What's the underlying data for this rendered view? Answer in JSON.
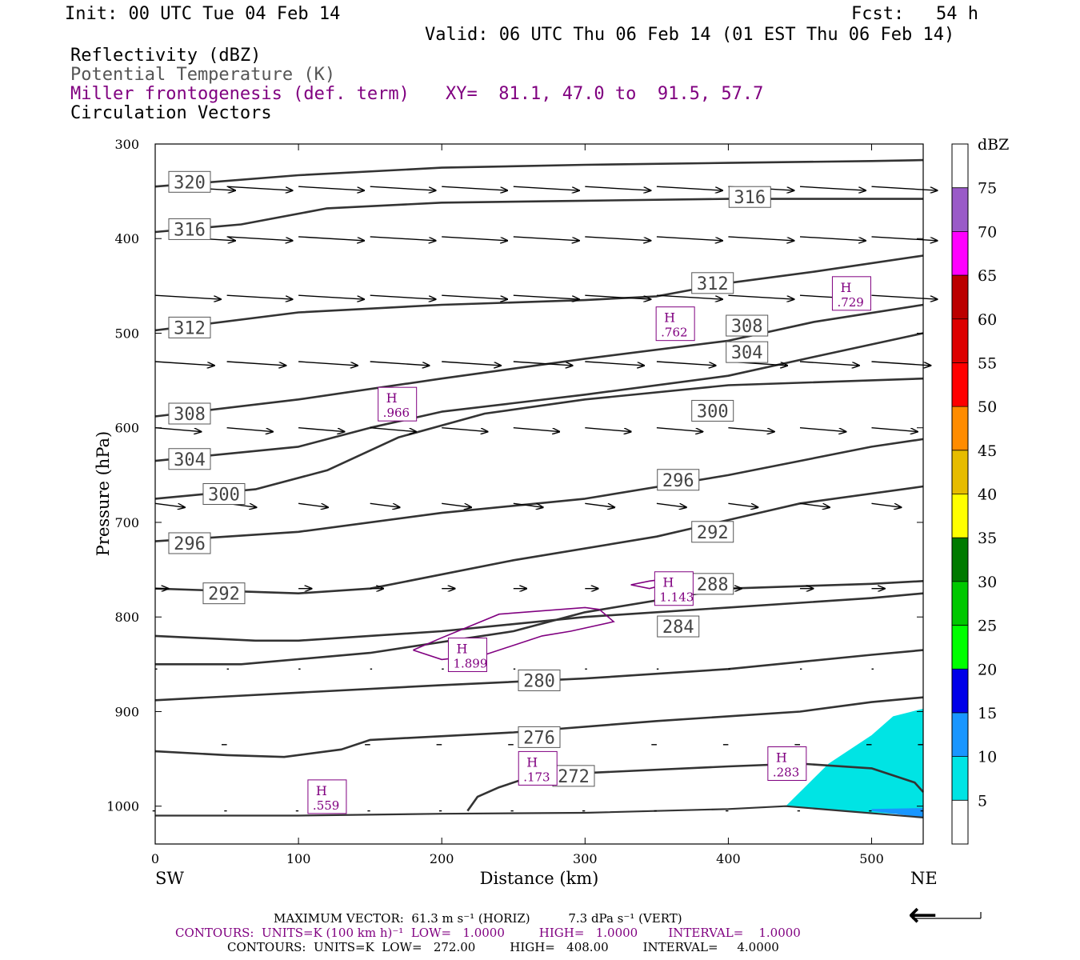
{
  "header": {
    "init": "Init: 00 UTC Tue 04 Feb 14",
    "fcst": "Fcst:   54 h",
    "valid": "Valid: 06 UTC Thu 06 Feb 14 (01 EST Thu 06 Feb 14)",
    "fields": [
      {
        "text": "Reflectivity (dBZ)",
        "color": "#000000"
      },
      {
        "text": "Potential Temperature (K)",
        "color": "#555555"
      },
      {
        "text": "Miller frontogenesis (def. term)",
        "color": "#800080"
      },
      {
        "text": "Circulation Vectors",
        "color": "#000000"
      }
    ],
    "xy": "XY=  81.1, 47.0 to  91.5, 57.7"
  },
  "footer": {
    "line1": "MAXIMUM VECTOR:  61.3 m s⁻¹ (HORIZ)          7.3 dPa s⁻¹ (VERT)",
    "line2": "CONTOURS:  UNITS=K (100 km h)⁻¹  LOW=   1.0000         HIGH=   1.0000        INTERVAL=    1.0000",
    "line3": "CONTOURS:  UNITS=K  LOW=   272.00         HIGH=   408.00         INTERVAL=     4.0000"
  },
  "chart_data": {
    "type": "cross-section",
    "xlabel": "Distance (km)",
    "ylabel": "Pressure (hPa)",
    "xlim": [
      0,
      536
    ],
    "ylim": [
      1040,
      300
    ],
    "x_ticks": [
      0,
      100,
      200,
      300,
      400,
      500
    ],
    "y_ticks": [
      300,
      400,
      500,
      600,
      700,
      800,
      900,
      1000
    ],
    "x_end_labels": {
      "left": "SW",
      "right": "NE"
    },
    "theta_contours": [
      {
        "value": 320,
        "points": [
          [
            0,
            345
          ],
          [
            100,
            333
          ],
          [
            200,
            325
          ],
          [
            300,
            322
          ],
          [
            400,
            320
          ],
          [
            500,
            318
          ],
          [
            536,
            317
          ]
        ],
        "labels": [
          [
            24,
            340
          ]
        ]
      },
      {
        "value": 316,
        "points": [
          [
            0,
            393
          ],
          [
            60,
            385
          ],
          [
            120,
            368
          ],
          [
            200,
            362
          ],
          [
            300,
            360
          ],
          [
            400,
            358
          ],
          [
            536,
            358
          ]
        ],
        "labels": [
          [
            24,
            390
          ],
          [
            415,
            356
          ]
        ]
      },
      {
        "value": 312,
        "points": [
          [
            0,
            497
          ],
          [
            100,
            478
          ],
          [
            200,
            470
          ],
          [
            300,
            465
          ],
          [
            350,
            461
          ],
          [
            400,
            447
          ],
          [
            460,
            435
          ],
          [
            536,
            418
          ]
        ],
        "labels": [
          [
            24,
            494
          ],
          [
            389,
            447
          ]
        ]
      },
      {
        "value": 308,
        "points": [
          [
            0,
            588
          ],
          [
            100,
            570
          ],
          [
            200,
            548
          ],
          [
            300,
            527
          ],
          [
            400,
            508
          ],
          [
            460,
            488
          ],
          [
            536,
            470
          ]
        ],
        "labels": [
          [
            24,
            585
          ],
          [
            413,
            492
          ]
        ]
      },
      {
        "value": 304,
        "points": [
          [
            0,
            635
          ],
          [
            100,
            620
          ],
          [
            150,
            600
          ],
          [
            200,
            583
          ],
          [
            300,
            565
          ],
          [
            400,
            545
          ],
          [
            460,
            525
          ],
          [
            536,
            500
          ]
        ],
        "labels": [
          [
            24,
            633
          ],
          [
            413,
            520
          ]
        ]
      },
      {
        "value": 300,
        "points": [
          [
            0,
            675
          ],
          [
            70,
            665
          ],
          [
            120,
            645
          ],
          [
            170,
            610
          ],
          [
            230,
            585
          ],
          [
            300,
            570
          ],
          [
            400,
            555
          ],
          [
            536,
            548
          ]
        ],
        "labels": [
          [
            48,
            670
          ],
          [
            389,
            582
          ]
        ]
      },
      {
        "value": 296,
        "points": [
          [
            0,
            720
          ],
          [
            100,
            710
          ],
          [
            200,
            690
          ],
          [
            300,
            675
          ],
          [
            400,
            650
          ],
          [
            500,
            620
          ],
          [
            536,
            612
          ]
        ],
        "labels": [
          [
            24,
            722
          ],
          [
            365,
            655
          ]
        ]
      },
      {
        "value": 292,
        "points": [
          [
            0,
            770
          ],
          [
            60,
            773
          ],
          [
            100,
            775
          ],
          [
            150,
            770
          ],
          [
            250,
            740
          ],
          [
            350,
            715
          ],
          [
            450,
            680
          ],
          [
            536,
            662
          ]
        ],
        "labels": [
          [
            48,
            775
          ],
          [
            389,
            710
          ]
        ]
      },
      {
        "value": 288,
        "points": [
          [
            0,
            850
          ],
          [
            60,
            850
          ],
          [
            150,
            838
          ],
          [
            250,
            815
          ],
          [
            300,
            795
          ],
          [
            400,
            770
          ],
          [
            500,
            765
          ],
          [
            536,
            762
          ]
        ],
        "labels": [
          [
            389,
            765
          ]
        ]
      },
      {
        "value": 284,
        "points": [
          [
            0,
            820
          ],
          [
            70,
            825
          ],
          [
            100,
            825
          ],
          [
            200,
            815
          ],
          [
            300,
            800
          ],
          [
            400,
            790
          ],
          [
            500,
            780
          ],
          [
            536,
            775
          ]
        ],
        "labels": [
          [
            365,
            810
          ]
        ]
      },
      {
        "value": 280,
        "points": [
          [
            0,
            888
          ],
          [
            100,
            880
          ],
          [
            200,
            872
          ],
          [
            300,
            865
          ],
          [
            400,
            855
          ],
          [
            500,
            840
          ],
          [
            536,
            835
          ]
        ],
        "labels": [
          [
            268,
            867
          ]
        ]
      },
      {
        "value": 276,
        "points": [
          [
            0,
            942
          ],
          [
            50,
            946
          ],
          [
            90,
            948
          ],
          [
            130,
            940
          ],
          [
            150,
            930
          ],
          [
            250,
            922
          ],
          [
            350,
            910
          ],
          [
            450,
            900
          ],
          [
            500,
            890
          ],
          [
            536,
            885
          ]
        ],
        "labels": [
          [
            268,
            927
          ]
        ]
      },
      {
        "value": 272,
        "points": [
          [
            218,
            1005
          ],
          [
            225,
            990
          ],
          [
            240,
            980
          ],
          [
            260,
            970
          ],
          [
            300,
            965
          ],
          [
            400,
            958
          ],
          [
            450,
            955
          ],
          [
            500,
            960
          ],
          [
            530,
            975
          ],
          [
            536,
            985
          ]
        ],
        "labels": [
          [
            292,
            968
          ]
        ]
      }
    ],
    "lowest_contour": {
      "points": [
        [
          0,
          1010
        ],
        [
          100,
          1010
        ],
        [
          200,
          1008
        ],
        [
          300,
          1007
        ],
        [
          400,
          1003
        ],
        [
          440,
          1000
        ],
        [
          480,
          1005
        ],
        [
          536,
          1012
        ]
      ]
    },
    "frontogenesis_maxima": [
      {
        "label": "H",
        "value": ".966",
        "at": [
          169,
          575
        ]
      },
      {
        "label": "H",
        "value": ".762",
        "at": [
          363,
          490
        ]
      },
      {
        "label": "H",
        "value": ".729",
        "at": [
          486,
          458
        ]
      },
      {
        "label": "H",
        "value": "1.143",
        "at": [
          362,
          770
        ]
      },
      {
        "label": "H",
        "value": "1.899",
        "at": [
          218,
          840
        ]
      },
      {
        "label": "H",
        "value": ".173",
        "at": [
          267,
          960
        ]
      },
      {
        "label": "H",
        "value": ".283",
        "at": [
          441,
          955
        ]
      },
      {
        "label": "H",
        "value": ".559",
        "at": [
          120,
          990
        ]
      }
    ],
    "frontogenesis_contours": [
      {
        "points": [
          [
            180,
            835
          ],
          [
            200,
            822
          ],
          [
            240,
            797
          ],
          [
            300,
            790
          ],
          [
            310,
            792
          ],
          [
            320,
            805
          ],
          [
            290,
            815
          ],
          [
            270,
            820
          ],
          [
            230,
            840
          ],
          [
            200,
            845
          ],
          [
            180,
            835
          ]
        ]
      },
      {
        "points": [
          [
            332,
            766
          ],
          [
            345,
            762
          ],
          [
            355,
            760
          ],
          [
            360,
            764
          ],
          [
            345,
            770
          ],
          [
            332,
            766
          ]
        ]
      }
    ],
    "reflectivity_areas": [
      {
        "dbz": 5,
        "color": "#00e4e4",
        "points": [
          [
            440,
            1000
          ],
          [
            470,
            955
          ],
          [
            500,
            925
          ],
          [
            515,
            905
          ],
          [
            536,
            897
          ],
          [
            536,
            1010
          ],
          [
            480,
            1005
          ],
          [
            440,
            1000
          ]
        ]
      },
      {
        "dbz": 10,
        "color": "#1996ff",
        "points": [
          [
            500,
            1003
          ],
          [
            536,
            1002
          ],
          [
            536,
            1012
          ],
          [
            500,
            1005
          ]
        ]
      }
    ],
    "colorbar": {
      "unit": "dBZ",
      "levels": [
        5,
        10,
        15,
        20,
        25,
        30,
        35,
        40,
        45,
        50,
        55,
        60,
        65,
        70,
        75
      ],
      "colors": [
        "#ffffff",
        "#00e4e4",
        "#1996ff",
        "#0000e8",
        "#00ff00",
        "#00c800",
        "#007a00",
        "#ffff00",
        "#e6bc00",
        "#ff8c00",
        "#ff0000",
        "#dd0000",
        "#bb0000",
        "#ff00ff",
        "#9a5ac8",
        "#ffffff"
      ]
    },
    "vector_rows": [
      {
        "p": 345,
        "xs": [
          10,
          50,
          100,
          150,
          200,
          250,
          300,
          350,
          400,
          450,
          500
        ],
        "u": 1.0,
        "w": -0.02
      },
      {
        "p": 398,
        "xs": [
          10,
          50,
          100,
          150,
          200,
          250,
          300,
          350,
          400,
          450,
          500
        ],
        "u": 1.0,
        "w": -0.02
      },
      {
        "p": 460,
        "xs": [
          0,
          50,
          100,
          150,
          200,
          250,
          300,
          350,
          400,
          450,
          500
        ],
        "u": 1.0,
        "w": -0.02
      },
      {
        "p": 530,
        "xs": [
          0,
          50,
          100,
          150,
          200,
          250,
          300,
          350,
          400,
          450,
          500
        ],
        "u": 0.9,
        "w": -0.02
      },
      {
        "p": 600,
        "xs": [
          0,
          50,
          100,
          150,
          200,
          250,
          300,
          350,
          400,
          450,
          500
        ],
        "u": 0.7,
        "w": -0.02
      },
      {
        "p": 680,
        "xs": [
          0,
          50,
          100,
          150,
          200,
          250,
          300,
          350,
          400,
          450,
          500
        ],
        "u": 0.45,
        "w": -0.02
      },
      {
        "p": 770,
        "xs": [
          0,
          50,
          100,
          150,
          200,
          250,
          300,
          350,
          400,
          450,
          500
        ],
        "u": 0.2,
        "w": 0.0
      },
      {
        "p": 855,
        "xs": [
          0,
          50,
          100,
          150,
          200,
          250,
          300,
          350,
          400,
          450,
          500
        ],
        "u": 0.03,
        "w": 0.0
      },
      {
        "p": 935,
        "xs": [
          50,
          150,
          200,
          250,
          350,
          400,
          450,
          500,
          536
        ],
        "u": -0.08,
        "w": 0.0
      },
      {
        "p": 1005,
        "xs": [
          0,
          50,
          100,
          150,
          200,
          250,
          300,
          350,
          400,
          450,
          500,
          536
        ],
        "u": -0.04,
        "w": 0.0
      }
    ],
    "reference_vector": "←"
  }
}
